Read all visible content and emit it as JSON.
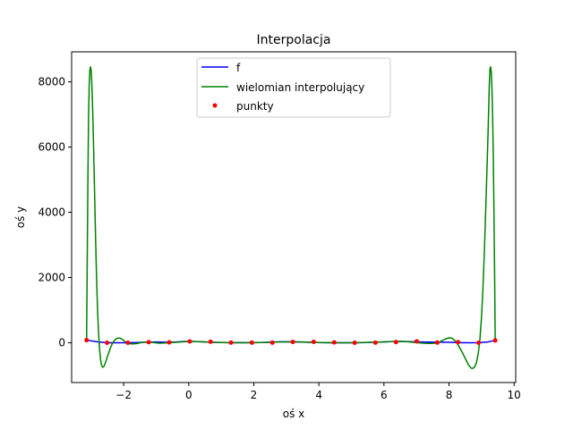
{
  "chart_data": {
    "type": "line",
    "title": "Interpolacja",
    "xlabel": "oś x",
    "ylabel": "oś y",
    "xlim": [
      -3.6,
      10.05
    ],
    "ylim": [
      -1220,
      8920
    ],
    "xticks": [
      -2,
      0,
      2,
      4,
      6,
      8,
      10
    ],
    "yticks": [
      0,
      2000,
      4000,
      6000,
      8000
    ],
    "grid": false,
    "legend_placement": "upper center",
    "legend": [
      "f",
      "wielomian interpolujący",
      "punkty"
    ],
    "series": [
      {
        "name": "f",
        "color": "#0000ff",
        "style": "line",
        "x": [
          -3.14,
          -2.8,
          -2.5,
          -2.2,
          -1.9,
          -1.6,
          -1.3,
          -1.0,
          -0.7,
          -0.4,
          -0.1,
          0.2,
          0.5,
          0.8,
          1.1,
          1.4,
          1.7,
          2.0,
          2.3,
          2.6,
          2.9,
          3.2,
          3.5,
          3.8,
          4.1,
          4.4,
          4.7,
          5.0,
          5.3,
          5.6,
          5.9,
          6.2,
          6.5,
          6.8,
          7.1,
          7.4,
          7.7,
          8.0,
          8.3,
          8.6,
          8.9,
          9.2,
          9.42
        ],
        "y": [
          80,
          28,
          0,
          0,
          0,
          8,
          18,
          22,
          18,
          25,
          40,
          38,
          25,
          12,
          5,
          2,
          2,
          4,
          10,
          22,
          30,
          28,
          20,
          10,
          4,
          1,
          0,
          1,
          4,
          10,
          20,
          34,
          42,
          35,
          25,
          20,
          18,
          12,
          4,
          0,
          2,
          25,
          70
        ]
      },
      {
        "name": "wielomian interpolujący",
        "color": "#008000",
        "style": "line",
        "x": [
          -3.14,
          -3.12,
          -3.1,
          -3.08,
          -3.06,
          -3.04,
          -3.02,
          -3.0,
          -2.98,
          -2.96,
          -2.94,
          -2.92,
          -2.9,
          -2.88,
          -2.86,
          -2.84,
          -2.82,
          -2.8,
          -2.77,
          -2.74,
          -2.71,
          -2.68,
          -2.65,
          -2.62,
          -2.59,
          -2.56,
          -2.53,
          -2.51,
          -2.45,
          -2.4,
          -2.35,
          -2.3,
          -2.25,
          -2.2,
          -2.15,
          -2.1,
          -2.05,
          -2.0,
          -1.95,
          -1.87,
          -1.8,
          -1.7,
          -1.6,
          -1.5,
          -1.4,
          -1.3,
          -1.23,
          -1.1,
          -1.0,
          -0.9,
          -0.8,
          -0.7,
          -0.6,
          -0.48,
          -0.3,
          -0.1,
          0.13,
          0.4,
          0.8,
          1.2,
          1.6,
          2.0,
          2.4,
          2.8,
          3.14,
          3.5,
          3.9,
          4.3,
          4.7,
          5.1,
          5.5,
          5.8,
          6.1,
          6.4,
          6.6,
          6.8,
          7.0,
          7.2,
          7.44,
          7.6,
          7.7,
          7.8,
          7.9,
          8.0,
          8.09,
          8.2,
          8.3,
          8.4,
          8.5,
          8.6,
          8.68,
          8.75,
          8.8,
          8.85,
          8.9,
          8.95,
          9.0,
          9.04,
          9.08,
          9.12,
          9.16,
          9.2,
          9.22,
          9.24,
          9.26,
          9.28,
          9.3,
          9.32,
          9.34,
          9.36,
          9.38,
          9.4,
          9.42
        ],
        "y": [
          80,
          2500,
          5000,
          6900,
          7900,
          8350,
          8460,
          8350,
          7980,
          7400,
          6650,
          5780,
          4860,
          3940,
          3060,
          2250,
          1530,
          930,
          280,
          -210,
          -520,
          -690,
          -750,
          -740,
          -690,
          -610,
          -520,
          -450,
          -280,
          -140,
          -30,
          50,
          105,
          135,
          145,
          135,
          110,
          70,
          30,
          -10,
          -30,
          -35,
          -25,
          -5,
          15,
          20,
          18,
          10,
          -5,
          -15,
          -12,
          -4,
          5,
          10,
          20,
          35,
          38,
          30,
          10,
          2,
          1,
          2,
          10,
          25,
          30,
          25,
          10,
          2,
          0,
          2,
          10,
          20,
          32,
          42,
          40,
          25,
          5,
          -15,
          -20,
          -10,
          20,
          70,
          120,
          150,
          140,
          50,
          -100,
          -280,
          -480,
          -680,
          -780,
          -780,
          -720,
          -580,
          -320,
          100,
          800,
          1600,
          2600,
          3800,
          5100,
          6400,
          7200,
          7950,
          8400,
          8460,
          8300,
          7800,
          7000,
          5800,
          4200,
          2300,
          70
        ]
      },
      {
        "name": "punkty",
        "color": "#ff0000",
        "style": "markers",
        "x": [
          -3.14,
          -2.51,
          -1.87,
          -1.23,
          -0.6,
          0.03,
          0.67,
          1.3,
          1.94,
          2.57,
          3.2,
          3.84,
          4.47,
          5.1,
          5.74,
          6.37,
          7.01,
          7.64,
          8.28,
          8.91,
          9.42
        ],
        "y": [
          80,
          0,
          0,
          18,
          12,
          40,
          30,
          5,
          2,
          3,
          25,
          28,
          10,
          0,
          2,
          20,
          42,
          5,
          18,
          0,
          70
        ]
      }
    ]
  }
}
